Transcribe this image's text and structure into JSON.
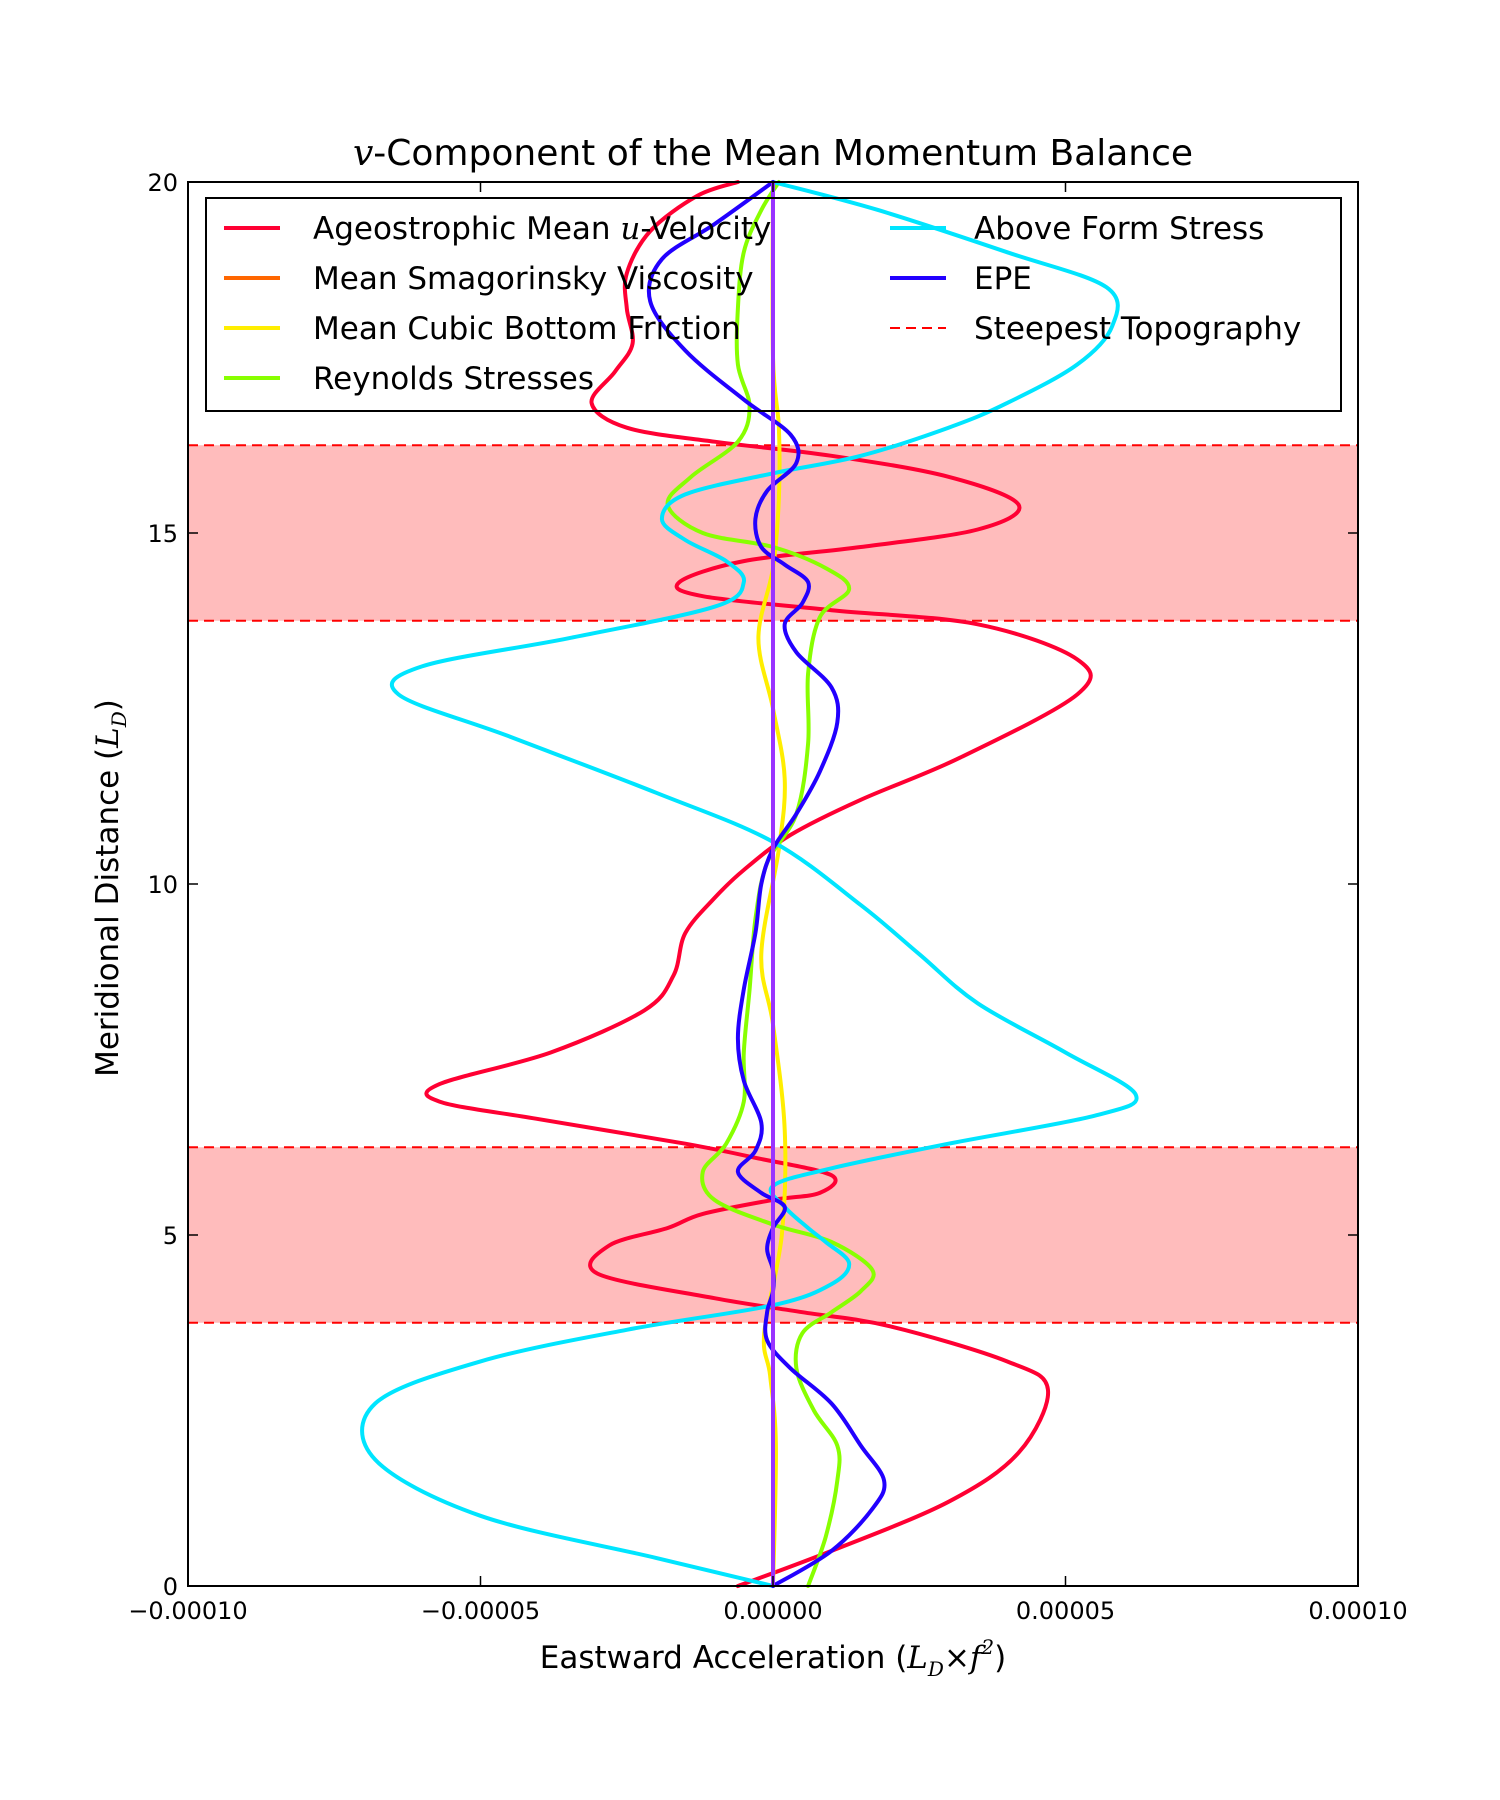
{
  "chart_data": {
    "type": "line",
    "title_math": "v",
    "title": "-Component of the Mean Momentum Balance",
    "xlabel": "Eastward Acceleration (",
    "xlabel_math": "L",
    "xlabel_sub": "D",
    "xlabel_times": "×",
    "xlabel_f": "f",
    "xlabel_sup": "2",
    "xlabel_close": ")",
    "ylabel": "Meridional Distance (",
    "ylabel_math": "L",
    "ylabel_sub": "D",
    "ylabel_close": ")",
    "xlim": [
      -0.0001,
      0.0001
    ],
    "ylim": [
      0,
      20
    ],
    "xticks": [
      -0.0001,
      -5e-05,
      0.0,
      5e-05,
      0.0001
    ],
    "xtick_labels": [
      "−0.00010",
      "−0.00005",
      "0.00000",
      "0.00005",
      "0.00010"
    ],
    "yticks": [
      0,
      5,
      10,
      15,
      20
    ],
    "ytick_labels": [
      "0",
      "5",
      "10",
      "15",
      "20"
    ],
    "grid": false,
    "legend_position": "top",
    "bands": [
      {
        "ymin": 3.75,
        "ymax": 6.25,
        "color": "#ffbcbc",
        "edge_color": "#ff0000"
      },
      {
        "ymin": 13.75,
        "ymax": 16.25,
        "color": "#ffbcbc",
        "edge_color": "#ff0000"
      }
    ],
    "series": [
      {
        "name": "Ageostrophic Mean ",
        "name_math": "u",
        "name_tail": "-Velocity",
        "color": "#ff0033",
        "style": "solid",
        "points": [
          [
            -6e-06,
            0
          ],
          [
            1e-05,
            0.5
          ],
          [
            3e-05,
            1.2
          ],
          [
            4.2e-05,
            1.9
          ],
          [
            4.7e-05,
            2.8
          ],
          [
            4e-05,
            3.2
          ],
          [
            2e-05,
            3.7
          ],
          [
            5e-06,
            3.9
          ],
          [
            -1e-05,
            4.1
          ],
          [
            -3e-05,
            4.45
          ],
          [
            -2.8e-05,
            4.85
          ],
          [
            -1.8e-05,
            5.1
          ],
          [
            -1.2e-05,
            5.3
          ],
          [
            0.0,
            5.5
          ],
          [
            8e-06,
            5.6
          ],
          [
            1e-05,
            5.85
          ],
          [
            -3e-06,
            6.1
          ],
          [
            -1.5e-05,
            6.3
          ],
          [
            -4e-05,
            6.65
          ],
          [
            -5.7e-05,
            6.9
          ],
          [
            -5.7e-05,
            7.15
          ],
          [
            -3.8e-05,
            7.6
          ],
          [
            -2.2e-05,
            8.2
          ],
          [
            -1.7e-05,
            8.7
          ],
          [
            -1.5e-05,
            9.3
          ],
          [
            -1e-05,
            9.8
          ],
          [
            -5e-06,
            10.2
          ],
          [
            3e-06,
            10.7
          ],
          [
            1.5e-05,
            11.2
          ],
          [
            3.2e-05,
            11.8
          ],
          [
            5.2e-05,
            12.7
          ],
          [
            5.2e-05,
            13.2
          ],
          [
            3.5e-05,
            13.7
          ],
          [
            1e-05,
            13.9
          ],
          [
            -1.2e-05,
            14.1
          ],
          [
            -1.6e-05,
            14.3
          ],
          [
            -5e-06,
            14.6
          ],
          [
            1.5e-05,
            14.8
          ],
          [
            3.5e-05,
            15.05
          ],
          [
            4.2e-05,
            15.4
          ],
          [
            3e-05,
            15.8
          ],
          [
            1e-05,
            16.1
          ],
          [
            -1e-05,
            16.3
          ],
          [
            -2.5e-05,
            16.5
          ],
          [
            -3.1e-05,
            16.85
          ],
          [
            -2.7e-05,
            17.3
          ],
          [
            -2.4e-05,
            17.7
          ],
          [
            -2.5e-05,
            18.2
          ],
          [
            -2.5e-05,
            18.7
          ],
          [
            -2.1e-05,
            19.3
          ],
          [
            -1.3e-05,
            19.8
          ],
          [
            -6e-06,
            20.0
          ]
        ]
      },
      {
        "name": "Mean Smagorinsky Viscosity",
        "color": "#ff6600",
        "style": "solid",
        "points": [
          [
            0.0,
            0
          ],
          [
            0.0,
            20
          ]
        ]
      },
      {
        "name": "Mean Cubic Bottom Friction",
        "color": "#ffee00",
        "style": "solid",
        "points": [
          [
            0.0,
            0
          ],
          [
            5e-07,
            2
          ],
          [
            -5e-07,
            3
          ],
          [
            -1.5e-06,
            3.6
          ],
          [
            1.5e-06,
            5
          ],
          [
            2e-06,
            6.5
          ],
          [
            0.0,
            8
          ],
          [
            -2e-06,
            9
          ],
          [
            1e-06,
            10.5
          ],
          [
            2e-06,
            11.5
          ],
          [
            0.0,
            12.5
          ],
          [
            -2.5e-06,
            13.5
          ],
          [
            0.0,
            14.5
          ],
          [
            1e-06,
            15.5
          ],
          [
            1e-06,
            16.5
          ],
          [
            0.0,
            17.5
          ],
          [
            0.0,
            20
          ]
        ]
      },
      {
        "name": "Reynolds Stresses",
        "color": "#88ff00",
        "style": "solid",
        "points": [
          [
            6e-06,
            0
          ],
          [
            9e-06,
            0.7
          ],
          [
            1.1e-05,
            1.5
          ],
          [
            1.1e-05,
            2.0
          ],
          [
            7e-06,
            2.5
          ],
          [
            4e-06,
            3.1
          ],
          [
            5e-06,
            3.6
          ],
          [
            1e-05,
            3.9
          ],
          [
            1.5e-05,
            4.2
          ],
          [
            1.7e-05,
            4.5
          ],
          [
            1e-05,
            4.9
          ],
          [
            0.0,
            5.15
          ],
          [
            -1e-05,
            5.5
          ],
          [
            -1.2e-05,
            5.9
          ],
          [
            -8e-06,
            6.3
          ],
          [
            -5e-06,
            6.9
          ],
          [
            -5e-06,
            7.6
          ],
          [
            -4e-06,
            8.5
          ],
          [
            -3e-06,
            9.5
          ],
          [
            -1e-06,
            10.3
          ],
          [
            4e-06,
            11.0
          ],
          [
            6e-06,
            12.0
          ],
          [
            6e-06,
            13.0
          ],
          [
            8e-06,
            13.8
          ],
          [
            1.3e-05,
            14.2
          ],
          [
            9e-06,
            14.5
          ],
          [
            0.0,
            14.8
          ],
          [
            -1.2e-05,
            15.0
          ],
          [
            -1.8e-05,
            15.4
          ],
          [
            -1.4e-05,
            15.8
          ],
          [
            -6e-06,
            16.3
          ],
          [
            -4e-06,
            16.8
          ],
          [
            -6e-06,
            17.4
          ],
          [
            -6e-06,
            18.2
          ],
          [
            -5e-06,
            19.0
          ],
          [
            -2e-06,
            19.6
          ],
          [
            1e-06,
            20.0
          ]
        ]
      },
      {
        "name": "Above Form Stress",
        "color": "#00e5ff",
        "style": "solid",
        "points": [
          [
            0.0,
            0
          ],
          [
            -2e-05,
            0.4
          ],
          [
            -5e-05,
            1.0
          ],
          [
            -6.8e-05,
            1.8
          ],
          [
            -6.8e-05,
            2.6
          ],
          [
            -5e-05,
            3.2
          ],
          [
            -2.5e-05,
            3.65
          ],
          [
            0.0,
            4.0
          ],
          [
            1e-05,
            4.3
          ],
          [
            1.3e-05,
            4.6
          ],
          [
            9e-06,
            4.9
          ],
          [
            6e-06,
            5.1
          ],
          [
            2e-06,
            5.4
          ],
          [
            0.0,
            5.7
          ],
          [
            1e-05,
            5.95
          ],
          [
            3e-05,
            6.3
          ],
          [
            5.5e-05,
            6.7
          ],
          [
            6.2e-05,
            7.0
          ],
          [
            5e-05,
            7.6
          ],
          [
            3.5e-05,
            8.3
          ],
          [
            2.5e-05,
            9.0
          ],
          [
            1.5e-05,
            9.7
          ],
          [
            0.0,
            10.6
          ],
          [
            -2e-05,
            11.3
          ],
          [
            -4.5e-05,
            12.1
          ],
          [
            -6.4e-05,
            12.7
          ],
          [
            -6e-05,
            13.1
          ],
          [
            -3.5e-05,
            13.5
          ],
          [
            -1e-05,
            13.95
          ],
          [
            -5e-06,
            14.3
          ],
          [
            -8e-06,
            14.6
          ],
          [
            -1.5e-05,
            14.9
          ],
          [
            -1.9e-05,
            15.2
          ],
          [
            -1.5e-05,
            15.55
          ],
          [
            0.0,
            15.85
          ],
          [
            1.5e-05,
            16.1
          ],
          [
            3e-05,
            16.5
          ],
          [
            4e-05,
            16.85
          ],
          [
            5.2e-05,
            17.4
          ],
          [
            5.8e-05,
            17.95
          ],
          [
            5.7e-05,
            18.5
          ],
          [
            4e-05,
            19.0
          ],
          [
            1.8e-05,
            19.6
          ],
          [
            0.0,
            20.0
          ]
        ]
      },
      {
        "name": "EPE",
        "color": "#2200ff",
        "style": "solid",
        "points": [
          [
            0.0,
            0
          ],
          [
            1e-05,
            0.5
          ],
          [
            1.7e-05,
            1.1
          ],
          [
            1.9e-05,
            1.5
          ],
          [
            1.5e-05,
            2.0
          ],
          [
            1e-05,
            2.6
          ],
          [
            3e-06,
            3.1
          ],
          [
            -1e-06,
            3.5
          ],
          [
            -1e-06,
            3.9
          ],
          [
            0.0,
            4.2
          ],
          [
            0.0,
            4.5
          ],
          [
            -1e-06,
            4.8
          ],
          [
            0.0,
            5.1
          ],
          [
            2e-06,
            5.4
          ],
          [
            -2e-06,
            5.6
          ],
          [
            -6e-06,
            5.9
          ],
          [
            -3e-06,
            6.2
          ],
          [
            -2e-06,
            6.6
          ],
          [
            -5e-06,
            7.2
          ],
          [
            -6e-06,
            7.8
          ],
          [
            -5e-06,
            8.5
          ],
          [
            -3e-06,
            9.3
          ],
          [
            -2e-06,
            10.0
          ],
          [
            0.0,
            10.5
          ],
          [
            4e-06,
            11.0
          ],
          [
            8e-06,
            11.6
          ],
          [
            1.1e-05,
            12.3
          ],
          [
            1e-05,
            12.8
          ],
          [
            4e-06,
            13.3
          ],
          [
            2e-06,
            13.7
          ],
          [
            5e-06,
            14.0
          ],
          [
            6e-06,
            14.3
          ],
          [
            2e-06,
            14.55
          ],
          [
            -2e-06,
            14.8
          ],
          [
            -3e-06,
            15.2
          ],
          [
            -1e-06,
            15.6
          ],
          [
            4e-06,
            16.0
          ],
          [
            3e-06,
            16.4
          ],
          [
            -5e-06,
            16.9
          ],
          [
            -1.5e-05,
            17.6
          ],
          [
            -2.1e-05,
            18.3
          ],
          [
            -1.9e-05,
            18.9
          ],
          [
            -1e-05,
            19.4
          ],
          [
            0.0,
            20.0
          ]
        ]
      },
      {
        "name": "Steepest Topography",
        "color": "#ff0000",
        "style": "dashed",
        "points": []
      }
    ],
    "zero_line_color": "#9933ff"
  }
}
